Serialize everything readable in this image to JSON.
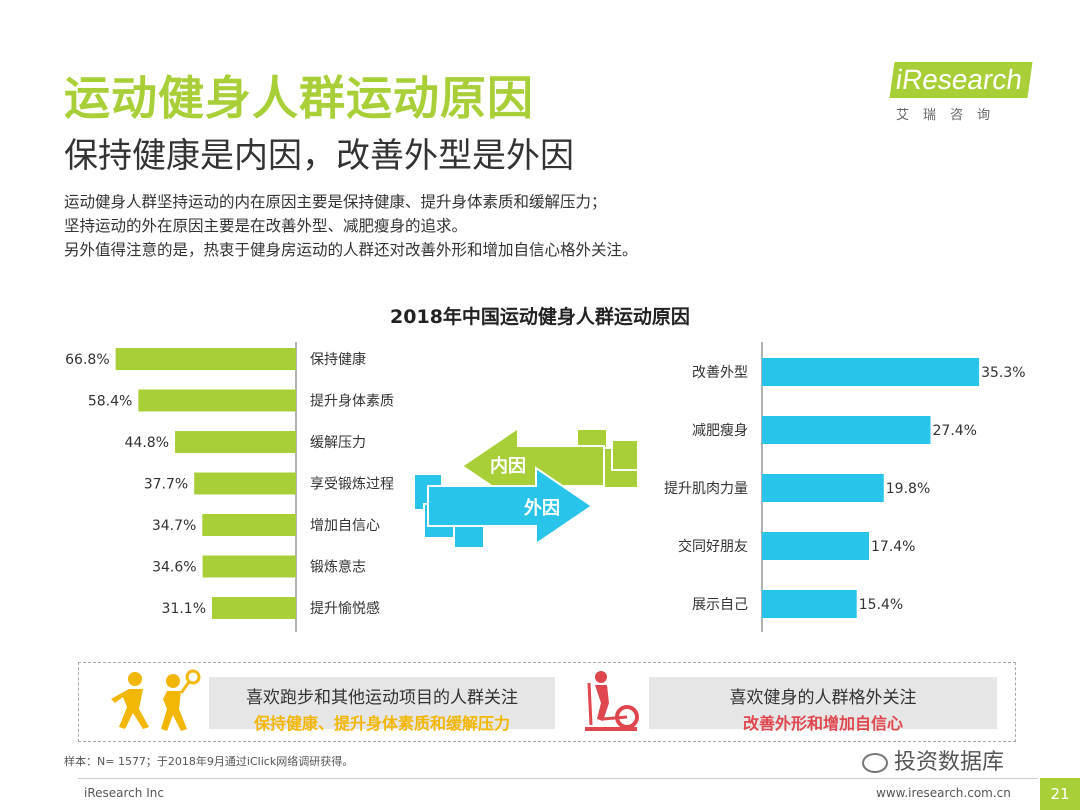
{
  "header": {
    "title": "运动健身人群运动原因",
    "subtitle": "保持健康是内因，改善外型是外因"
  },
  "logo": {
    "main": "iResearch",
    "sub": "艾瑞咨询"
  },
  "description": [
    "运动健身人群坚持运动的内在原因主要是保持健康、提升身体素质和缓解压力；",
    "坚持运动的外在原因主要是在改善外型、减肥瘦身的追求。",
    "另外值得注意的是，热衷于健身房运动的人群还对改善外形和增加自信心格外关注。"
  ],
  "arrows": {
    "inner_label": "内因",
    "outer_label": "外因"
  },
  "chart_data": [
    {
      "type": "bar",
      "title": "2018年中国运动健身人群运动原因",
      "orientation": "horizontal",
      "categories": [
        "保持健康",
        "提升身体素质",
        "缓解压力",
        "享受锻炼过程",
        "增加自信心",
        "锻炼意志",
        "提升愉悦感"
      ],
      "values": [
        66.8,
        58.4,
        44.8,
        37.7,
        34.7,
        34.6,
        31.1
      ],
      "value_labels": [
        "66.8%",
        "58.4%",
        "44.8%",
        "37.7%",
        "34.7%",
        "34.6%",
        "31.1%"
      ],
      "unit": "%",
      "color": "#a9cf38"
    },
    {
      "type": "bar",
      "orientation": "horizontal",
      "categories": [
        "改善外型",
        "减肥瘦身",
        "提升肌肉力量",
        "交同好朋友",
        "展示自己"
      ],
      "values": [
        35.3,
        27.4,
        19.8,
        17.4,
        15.4
      ],
      "value_labels": [
        "35.3%",
        "27.4%",
        "19.8%",
        "17.4%",
        "15.4%"
      ],
      "unit": "%",
      "color": "#29c4ea"
    }
  ],
  "bottom": {
    "left_line1": "喜欢跑步和其他运动项目的人群关注",
    "left_line2": "保持健康、提升身体素质和缓解压力",
    "right_line1": "喜欢健身的人群格外关注",
    "right_line2": "改善外形和增加自信心"
  },
  "footnote": "样本：N= 1577；于2018年9月通过iClick网络调研获得。",
  "footer": {
    "left": "iResearch Inc",
    "right": "www.iresearch.com.cn",
    "page": "21",
    "watermark": "投资数据库"
  },
  "colors": {
    "green": "#a9cf38",
    "blue": "#29c4ea",
    "yellow": "#f2b705",
    "red": "#e0464e"
  }
}
